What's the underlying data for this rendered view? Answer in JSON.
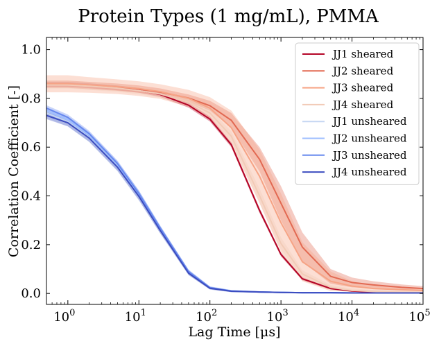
{
  "chart_data": {
    "type": "line",
    "title": "Protein Types (1 mg/mL), PMMA",
    "xlabel": "Lag Time [μs]",
    "ylabel": "Correlation Coefficient [-]",
    "xscale": "log",
    "xlim": [
      0.5,
      100000
    ],
    "ylim": [
      -0.045,
      1.05
    ],
    "xticks": [
      {
        "value": 1,
        "base": "10",
        "exp": "0"
      },
      {
        "value": 10,
        "base": "10",
        "exp": "1"
      },
      {
        "value": 100,
        "base": "10",
        "exp": "2"
      },
      {
        "value": 1000,
        "base": "10",
        "exp": "3"
      },
      {
        "value": 10000,
        "base": "10",
        "exp": "4"
      },
      {
        "value": 100000,
        "base": "10",
        "exp": "5"
      }
    ],
    "yticks": [
      "0.0",
      "0.2",
      "0.4",
      "0.6",
      "0.8",
      "1.0"
    ],
    "legend_position": "top-right",
    "grid": false,
    "x": [
      0.5,
      1,
      2,
      5,
      10,
      20,
      50,
      100,
      200,
      500,
      1000,
      2000,
      5000,
      10000,
      20000,
      50000,
      100000
    ],
    "series": [
      {
        "name": "JJ1 sheared",
        "color": "#b40426",
        "values": [
          0.857,
          0.857,
          0.852,
          0.843,
          0.833,
          0.816,
          0.772,
          0.715,
          0.61,
          0.34,
          0.16,
          0.06,
          0.02,
          0.01,
          0.005,
          0.003,
          0.002
        ],
        "band": [
          0.01,
          0.01,
          0.01,
          0.01,
          0.01,
          0.01,
          0.01,
          0.01,
          0.01,
          0.01,
          0.008,
          0.006,
          0.004,
          0.003,
          0.003,
          0.003,
          0.003
        ]
      },
      {
        "name": "JJ2 sheared",
        "color": "#e26952",
        "values": [
          0.858,
          0.858,
          0.853,
          0.846,
          0.838,
          0.826,
          0.801,
          0.77,
          0.71,
          0.55,
          0.37,
          0.19,
          0.07,
          0.045,
          0.035,
          0.025,
          0.02
        ],
        "band": [
          0.015,
          0.015,
          0.015,
          0.015,
          0.015,
          0.015,
          0.015,
          0.02,
          0.03,
          0.05,
          0.07,
          0.06,
          0.03,
          0.02,
          0.015,
          0.012,
          0.01
        ]
      },
      {
        "name": "JJ3 sheared",
        "color": "#f6a385",
        "values": [
          0.86,
          0.86,
          0.855,
          0.848,
          0.84,
          0.828,
          0.8,
          0.76,
          0.68,
          0.48,
          0.29,
          0.13,
          0.05,
          0.03,
          0.02,
          0.015,
          0.012
        ],
        "band": [
          0.035,
          0.035,
          0.032,
          0.03,
          0.03,
          0.03,
          0.035,
          0.045,
          0.07,
          0.11,
          0.12,
          0.08,
          0.04,
          0.02,
          0.015,
          0.012,
          0.01
        ]
      },
      {
        "name": "JJ4 sheared",
        "color": "#f2cbb7",
        "values": [
          0.855,
          0.855,
          0.85,
          0.842,
          0.832,
          0.818,
          0.785,
          0.74,
          0.645,
          0.4,
          0.205,
          0.08,
          0.025,
          0.012,
          0.008,
          0.005,
          0.004
        ],
        "band": [
          0.015,
          0.015,
          0.015,
          0.015,
          0.015,
          0.015,
          0.015,
          0.015,
          0.02,
          0.03,
          0.025,
          0.015,
          0.01,
          0.008,
          0.006,
          0.005,
          0.004
        ]
      },
      {
        "name": "JJ1 unsheared",
        "color": "#c5d6f2",
        "values": [
          0.74,
          0.705,
          0.64,
          0.52,
          0.4,
          0.26,
          0.085,
          0.022,
          0.01,
          0.006,
          0.004,
          0.003,
          0.003,
          0.002,
          0.002,
          0.002,
          0.002
        ],
        "band": [
          0.02,
          0.02,
          0.02,
          0.02,
          0.02,
          0.015,
          0.01,
          0.005,
          0.004,
          0.003,
          0.003,
          0.003,
          0.003,
          0.003,
          0.003,
          0.003,
          0.003
        ]
      },
      {
        "name": "JJ2 unsheared",
        "color": "#9ebeff",
        "values": [
          0.75,
          0.712,
          0.648,
          0.528,
          0.407,
          0.265,
          0.088,
          0.023,
          0.01,
          0.006,
          0.004,
          0.003,
          0.003,
          0.002,
          0.002,
          0.002,
          0.002
        ],
        "band": [
          0.015,
          0.015,
          0.015,
          0.015,
          0.015,
          0.012,
          0.008,
          0.005,
          0.004,
          0.003,
          0.003,
          0.003,
          0.003,
          0.003,
          0.003,
          0.003,
          0.003
        ]
      },
      {
        "name": "JJ3 unsheared",
        "color": "#6788ee",
        "values": [
          0.76,
          0.722,
          0.655,
          0.533,
          0.41,
          0.268,
          0.09,
          0.024,
          0.01,
          0.006,
          0.004,
          0.003,
          0.003,
          0.002,
          0.002,
          0.002,
          0.002
        ],
        "band": [
          0.012,
          0.012,
          0.012,
          0.012,
          0.012,
          0.01,
          0.008,
          0.005,
          0.004,
          0.003,
          0.003,
          0.003,
          0.003,
          0.003,
          0.003,
          0.003,
          0.003
        ]
      },
      {
        "name": "JJ4 unsheared",
        "color": "#3b4cc0",
        "values": [
          0.73,
          0.7,
          0.637,
          0.518,
          0.398,
          0.258,
          0.083,
          0.021,
          0.009,
          0.006,
          0.004,
          0.003,
          0.003,
          0.002,
          0.002,
          0.002,
          0.002
        ],
        "band": [
          0.015,
          0.015,
          0.015,
          0.015,
          0.015,
          0.012,
          0.008,
          0.005,
          0.004,
          0.003,
          0.003,
          0.003,
          0.003,
          0.003,
          0.003,
          0.003,
          0.003
        ]
      }
    ]
  }
}
